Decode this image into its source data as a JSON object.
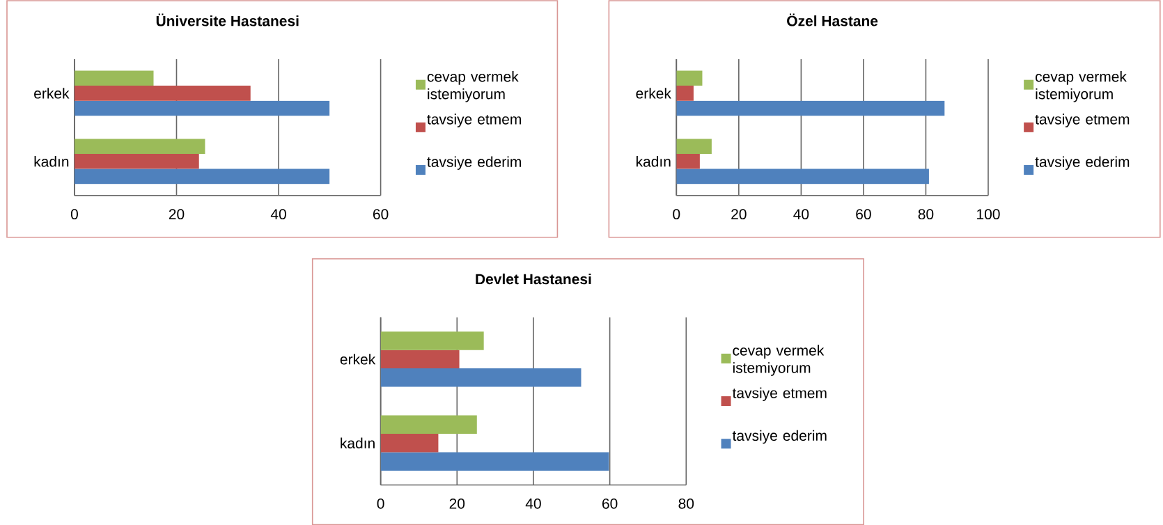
{
  "chart_data": [
    {
      "type": "bar",
      "orientation": "horizontal",
      "title": "Üniversite Hastanesi",
      "categories": [
        "erkek",
        "kadın"
      ],
      "series": [
        {
          "name": "tavsiye ederim",
          "color": "#4f81bd",
          "values": [
            50,
            50
          ]
        },
        {
          "name": "tavsiye etmem",
          "color": "#c0504d",
          "values": [
            34.5,
            24.4
          ]
        },
        {
          "name": "cevap vermek istemiyorum",
          "color": "#9bbb59",
          "values": [
            15.5,
            25.6
          ]
        }
      ],
      "xlim": [
        0,
        60
      ],
      "xticks": [
        0,
        20,
        40,
        60
      ],
      "grid": "x",
      "legend": "right"
    },
    {
      "type": "bar",
      "orientation": "horizontal",
      "title": "Özel Hastane",
      "categories": [
        "erkek",
        "kadın"
      ],
      "series": [
        {
          "name": "tavsiye ederim",
          "color": "#4f81bd",
          "values": [
            86,
            81
          ]
        },
        {
          "name": "tavsiye etmem",
          "color": "#c0504d",
          "values": [
            5.5,
            7.5
          ]
        },
        {
          "name": "cevap vermek istemiyorum",
          "color": "#9bbb59",
          "values": [
            8.3,
            11.3
          ]
        }
      ],
      "xlim": [
        0,
        100
      ],
      "xticks": [
        0,
        20,
        40,
        60,
        80,
        100
      ],
      "grid": "x",
      "legend": "right"
    },
    {
      "type": "bar",
      "orientation": "horizontal",
      "title": "Devlet Hastanesi",
      "categories": [
        "erkek",
        "kadın"
      ],
      "series": [
        {
          "name": "tavsiye ederim",
          "color": "#4f81bd",
          "values": [
            52.5,
            59.8
          ]
        },
        {
          "name": "tavsiye etmem",
          "color": "#c0504d",
          "values": [
            20.6,
            15.1
          ]
        },
        {
          "name": "cevap vermek istemiyorum",
          "color": "#9bbb59",
          "values": [
            27,
            25.2
          ]
        }
      ],
      "xlim": [
        0,
        80
      ],
      "xticks": [
        0,
        20,
        40,
        60,
        80
      ],
      "grid": "x",
      "legend": "right"
    }
  ]
}
